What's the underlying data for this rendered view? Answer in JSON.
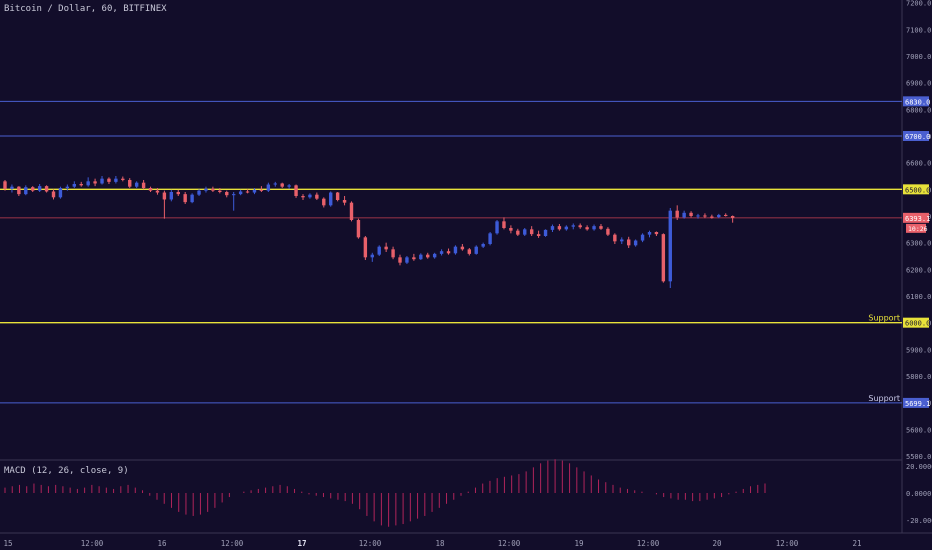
{
  "header": {
    "title": "Bitcoin / Dollar, 60, BITFINEX"
  },
  "macd": {
    "title": "MACD (12, 26, close, 9)",
    "ticks": [
      "20.0000",
      "0.0000",
      "-20.0000"
    ]
  },
  "colors": {
    "background": "#120d2a",
    "up": "#3d5bd8",
    "down": "#e8606a",
    "yellow": "#e8e23a",
    "blue_line": "#4a5fd0",
    "price_line": "#c84050",
    "histogram": "#b0245a",
    "axis_text": "#a0a0b8"
  },
  "chart_data": {
    "type": "candlestick",
    "y_ticks": [
      "7200.0",
      "7100.0",
      "7000.0",
      "6900.0",
      "6800.0",
      "6700.0",
      "6600.0",
      "6500.0",
      "6400.0",
      "6300.0",
      "6200.0",
      "6100.0",
      "6000.0",
      "5900.0",
      "5800.0",
      "5700.0",
      "5600.0",
      "5500.0"
    ],
    "ylim": [
      5485,
      7210
    ],
    "x_ticks": [
      {
        "label": "15",
        "bold": false
      },
      {
        "label": "12:00",
        "bold": false
      },
      {
        "label": "16",
        "bold": false
      },
      {
        "label": "12:00",
        "bold": false
      },
      {
        "label": "17",
        "bold": true
      },
      {
        "label": "12:00",
        "bold": false
      },
      {
        "label": "18",
        "bold": false
      },
      {
        "label": "12:00",
        "bold": false
      },
      {
        "label": "19",
        "bold": false
      },
      {
        "label": "12:00",
        "bold": false
      },
      {
        "label": "20",
        "bold": false
      },
      {
        "label": "12:00",
        "bold": false
      },
      {
        "label": "21",
        "bold": false
      }
    ],
    "horizontal_lines": [
      {
        "value": 6830.0,
        "color": "blue",
        "axis_label": "6830.0",
        "text": ""
      },
      {
        "value": 6700.0,
        "color": "blue",
        "axis_label": "6700.0",
        "text": ""
      },
      {
        "value": 6500.0,
        "color": "yellow",
        "axis_label": "6500.0",
        "text": ""
      },
      {
        "value": 6000.0,
        "color": "yellow",
        "axis_label": "6000.0",
        "text": "Support"
      },
      {
        "value": 5699.1,
        "color": "blue",
        "axis_label": "5699.1",
        "text": "Support"
      }
    ],
    "current_price": {
      "value": 6393.1,
      "label": "6393.1",
      "countdown": "10:26"
    },
    "candles": [
      [
        6530,
        6535,
        6495,
        6502
      ],
      [
        6502,
        6518,
        6488,
        6510
      ],
      [
        6510,
        6512,
        6475,
        6482
      ],
      [
        6482,
        6515,
        6478,
        6508
      ],
      [
        6508,
        6512,
        6490,
        6495
      ],
      [
        6495,
        6520,
        6490,
        6512
      ],
      [
        6512,
        6515,
        6488,
        6492
      ],
      [
        6492,
        6500,
        6462,
        6470
      ],
      [
        6470,
        6510,
        6465,
        6505
      ],
      [
        6505,
        6518,
        6495,
        6510
      ],
      [
        6510,
        6530,
        6505,
        6520
      ],
      [
        6520,
        6528,
        6510,
        6515
      ],
      [
        6515,
        6545,
        6510,
        6530
      ],
      [
        6530,
        6540,
        6512,
        6522
      ],
      [
        6522,
        6550,
        6518,
        6540
      ],
      [
        6540,
        6545,
        6520,
        6528
      ],
      [
        6528,
        6550,
        6522,
        6540
      ],
      [
        6540,
        6548,
        6530,
        6535
      ],
      [
        6535,
        6542,
        6505,
        6510
      ],
      [
        6510,
        6530,
        6505,
        6525
      ],
      [
        6525,
        6535,
        6500,
        6505
      ],
      [
        6505,
        6510,
        6490,
        6495
      ],
      [
        6495,
        6505,
        6480,
        6488
      ],
      [
        6488,
        6495,
        6390,
        6462
      ],
      [
        6462,
        6498,
        6455,
        6490
      ],
      [
        6490,
        6498,
        6475,
        6482
      ],
      [
        6482,
        6490,
        6445,
        6452
      ],
      [
        6452,
        6485,
        6448,
        6480
      ],
      [
        6480,
        6500,
        6475,
        6495
      ],
      [
        6495,
        6510,
        6488,
        6502
      ],
      [
        6502,
        6510,
        6490,
        6495
      ],
      [
        6495,
        6505,
        6485,
        6490
      ],
      [
        6490,
        6495,
        6470,
        6478
      ],
      [
        6478,
        6490,
        6420,
        6482
      ],
      [
        6482,
        6498,
        6478,
        6492
      ],
      [
        6492,
        6500,
        6485,
        6488
      ],
      [
        6488,
        6505,
        6482,
        6498
      ],
      [
        6498,
        6512,
        6490,
        6495
      ],
      [
        6495,
        6525,
        6490,
        6518
      ],
      [
        6518,
        6528,
        6510,
        6522
      ],
      [
        6522,
        6525,
        6505,
        6510
      ],
      [
        6510,
        6520,
        6502,
        6515
      ],
      [
        6515,
        6518,
        6468,
        6475
      ],
      [
        6475,
        6482,
        6460,
        6470
      ],
      [
        6470,
        6485,
        6465,
        6480
      ],
      [
        6480,
        6488,
        6460,
        6465
      ],
      [
        6465,
        6470,
        6432,
        6440
      ],
      [
        6440,
        6492,
        6435,
        6488
      ],
      [
        6488,
        6490,
        6455,
        6460
      ],
      [
        6460,
        6475,
        6440,
        6450
      ],
      [
        6450,
        6455,
        6380,
        6385
      ],
      [
        6385,
        6390,
        6315,
        6320
      ],
      [
        6320,
        6325,
        6235,
        6245
      ],
      [
        6245,
        6262,
        6228,
        6255
      ],
      [
        6255,
        6290,
        6250,
        6285
      ],
      [
        6285,
        6300,
        6265,
        6275
      ],
      [
        6275,
        6285,
        6238,
        6245
      ],
      [
        6245,
        6255,
        6215,
        6225
      ],
      [
        6225,
        6250,
        6220,
        6245
      ],
      [
        6245,
        6258,
        6232,
        6238
      ],
      [
        6238,
        6260,
        6235,
        6255
      ],
      [
        6255,
        6262,
        6240,
        6245
      ],
      [
        6245,
        6262,
        6240,
        6258
      ],
      [
        6258,
        6275,
        6252,
        6268
      ],
      [
        6268,
        6278,
        6255,
        6260
      ],
      [
        6260,
        6290,
        6255,
        6285
      ],
      [
        6285,
        6295,
        6270,
        6275
      ],
      [
        6275,
        6280,
        6252,
        6258
      ],
      [
        6258,
        6290,
        6255,
        6285
      ],
      [
        6285,
        6300,
        6280,
        6295
      ],
      [
        6295,
        6340,
        6290,
        6335
      ],
      [
        6335,
        6385,
        6330,
        6380
      ],
      [
        6380,
        6395,
        6350,
        6355
      ],
      [
        6355,
        6365,
        6335,
        6345
      ],
      [
        6345,
        6352,
        6325,
        6330
      ],
      [
        6330,
        6355,
        6325,
        6350
      ],
      [
        6350,
        6362,
        6325,
        6332
      ],
      [
        6332,
        6345,
        6318,
        6325
      ],
      [
        6325,
        6350,
        6322,
        6348
      ],
      [
        6348,
        6368,
        6340,
        6362
      ],
      [
        6362,
        6370,
        6345,
        6350
      ],
      [
        6350,
        6365,
        6345,
        6360
      ],
      [
        6360,
        6372,
        6350,
        6365
      ],
      [
        6365,
        6372,
        6352,
        6358
      ],
      [
        6358,
        6365,
        6345,
        6350
      ],
      [
        6350,
        6368,
        6345,
        6362
      ],
      [
        6362,
        6370,
        6348,
        6352
      ],
      [
        6352,
        6358,
        6325,
        6330
      ],
      [
        6330,
        6335,
        6295,
        6305
      ],
      [
        6305,
        6320,
        6295,
        6312
      ],
      [
        6312,
        6322,
        6280,
        6290
      ],
      [
        6290,
        6312,
        6285,
        6308
      ],
      [
        6308,
        6335,
        6302,
        6330
      ],
      [
        6330,
        6345,
        6320,
        6340
      ],
      [
        6340,
        6342,
        6325,
        6332
      ],
      [
        6332,
        6335,
        6150,
        6155
      ],
      [
        6155,
        6430,
        6130,
        6420
      ],
      [
        6420,
        6440,
        6385,
        6395
      ],
      [
        6395,
        6420,
        6390,
        6412
      ],
      [
        6412,
        6418,
        6395,
        6400
      ],
      [
        6400,
        6408,
        6390,
        6402
      ],
      [
        6402,
        6410,
        6392,
        6398
      ],
      [
        6398,
        6405,
        6390,
        6396
      ],
      [
        6396,
        6408,
        6392,
        6404
      ],
      [
        6404,
        6410,
        6398,
        6400
      ],
      [
        6400,
        6402,
        6375,
        6393
      ]
    ],
    "macd_histogram": [
      4,
      5,
      6,
      5,
      7,
      6,
      5,
      6,
      5,
      4,
      3,
      4,
      6,
      5,
      4,
      3,
      5,
      6,
      4,
      2,
      -2,
      -5,
      -8,
      -11,
      -14,
      -16,
      -17,
      -16,
      -14,
      -11,
      -7,
      -3,
      0,
      1,
      2,
      3,
      4,
      5,
      6,
      5,
      3,
      1,
      -1,
      -2,
      -3,
      -4,
      -5,
      -6,
      -8,
      -12,
      -17,
      -21,
      -24,
      -25,
      -24,
      -23,
      -21,
      -19,
      -17,
      -14,
      -11,
      -8,
      -5,
      -2,
      1,
      4,
      7,
      9,
      11,
      12,
      13,
      14,
      16,
      19,
      22,
      24,
      25,
      24,
      22,
      19,
      16,
      13,
      10,
      8,
      6,
      4,
      3,
      2,
      1,
      0,
      -1,
      -3,
      -4,
      -5,
      -5,
      -6,
      -6,
      -5,
      -4,
      -3,
      -1,
      1,
      3,
      5,
      6,
      7
    ]
  }
}
